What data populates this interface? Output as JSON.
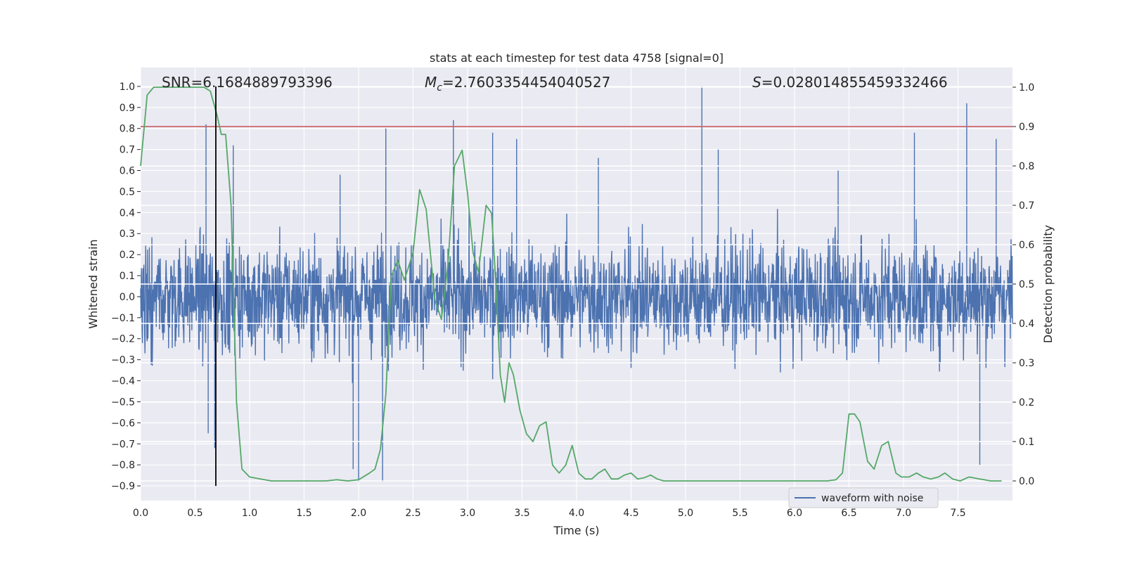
{
  "chart_data": {
    "type": "line",
    "title": "stats at each timestep for test data 4758 [signal=0]",
    "xlabel": "Time (s)",
    "ylabel": "Whitened strain",
    "y2label": "Detection probability",
    "xlim": [
      0,
      8
    ],
    "ylim": [
      -0.97,
      1.09
    ],
    "y2lim": [
      -0.05,
      1.05
    ],
    "x_ticks": [
      "0.0",
      "0.5",
      "1.0",
      "1.5",
      "2.0",
      "2.5",
      "3.0",
      "3.5",
      "4.0",
      "4.5",
      "5.0",
      "5.5",
      "6.0",
      "6.5",
      "7.0",
      "7.5"
    ],
    "y_ticks": [
      "1.0",
      "0.9",
      "0.8",
      "0.7",
      "0.6",
      "0.5",
      "0.4",
      "0.3",
      "0.2",
      "0.1",
      "0.0",
      "−0.1",
      "−0.2",
      "−0.3",
      "−0.4",
      "−0.5",
      "−0.6",
      "−0.7",
      "−0.8",
      "−0.9"
    ],
    "y2_ticks": [
      "1.0",
      "0.9",
      "0.8",
      "0.7",
      "0.6",
      "0.5",
      "0.4",
      "0.3",
      "0.2",
      "0.1",
      "0.0"
    ],
    "grid": true,
    "legend_position": "bottom-right",
    "annotations": {
      "snr": "SNR=6.1684889793396",
      "mc_symbol": "M",
      "mc_sub": "c",
      "mc_value": "=2.7603354454040527",
      "s_symbol": "S",
      "s_value": "=0.028014855459332466"
    },
    "threshold_y2": 0.9,
    "marker_x": 0.69,
    "series": [
      {
        "name": "waveform with noise",
        "color": "#4c72b0",
        "axis": "left",
        "kind": "noise",
        "amplitude": 0.22,
        "spikes": [
          [
            0.6,
            0.82
          ],
          [
            0.62,
            -0.65
          ],
          [
            0.68,
            -0.72
          ],
          [
            0.85,
            0.72
          ],
          [
            1.83,
            0.58
          ],
          [
            1.95,
            -0.82
          ],
          [
            2.0,
            -0.88
          ],
          [
            2.22,
            -0.88
          ],
          [
            2.25,
            0.8
          ],
          [
            2.87,
            0.84
          ],
          [
            3.23,
            0.78
          ],
          [
            3.45,
            0.75
          ],
          [
            4.2,
            0.66
          ],
          [
            5.15,
            1.0
          ],
          [
            5.3,
            0.7
          ],
          [
            6.4,
            0.6
          ],
          [
            7.1,
            0.78
          ],
          [
            7.58,
            0.92
          ],
          [
            7.7,
            -0.8
          ],
          [
            7.85,
            0.75
          ]
        ]
      },
      {
        "name": "detection probability",
        "color": "#55a868",
        "axis": "right",
        "x": [
          0.0,
          0.06,
          0.12,
          0.2,
          0.3,
          0.4,
          0.5,
          0.58,
          0.64,
          0.7,
          0.74,
          0.78,
          0.83,
          0.88,
          0.93,
          1.0,
          1.1,
          1.2,
          1.3,
          1.4,
          1.5,
          1.6,
          1.7,
          1.8,
          1.9,
          2.0,
          2.1,
          2.15,
          2.2,
          2.25,
          2.3,
          2.36,
          2.42,
          2.5,
          2.56,
          2.62,
          2.7,
          2.76,
          2.82,
          2.88,
          2.95,
          3.0,
          3.05,
          3.1,
          3.17,
          3.22,
          3.26,
          3.3,
          3.34,
          3.38,
          3.42,
          3.48,
          3.54,
          3.6,
          3.66,
          3.72,
          3.78,
          3.84,
          3.9,
          3.96,
          4.02,
          4.08,
          4.14,
          4.2,
          4.26,
          4.32,
          4.38,
          4.44,
          4.5,
          4.56,
          4.62,
          4.68,
          4.74,
          4.8,
          4.9,
          5.0,
          5.2,
          5.4,
          5.6,
          5.8,
          6.0,
          6.2,
          6.3,
          6.38,
          6.44,
          6.5,
          6.55,
          6.6,
          6.67,
          6.73,
          6.8,
          6.86,
          6.93,
          6.98,
          7.05,
          7.12,
          7.18,
          7.25,
          7.32,
          7.38,
          7.45,
          7.52,
          7.6,
          7.7,
          7.8,
          7.9
        ],
        "y": [
          0.8,
          0.98,
          1.0,
          1.0,
          1.0,
          1.0,
          1.0,
          1.0,
          0.99,
          0.93,
          0.88,
          0.88,
          0.7,
          0.2,
          0.03,
          0.01,
          0.005,
          0.0,
          0.0,
          0.0,
          0.0,
          0.0,
          0.0,
          0.003,
          0.0,
          0.003,
          0.02,
          0.03,
          0.08,
          0.22,
          0.52,
          0.56,
          0.51,
          0.58,
          0.74,
          0.69,
          0.46,
          0.41,
          0.55,
          0.8,
          0.84,
          0.73,
          0.58,
          0.53,
          0.7,
          0.68,
          0.5,
          0.27,
          0.2,
          0.3,
          0.27,
          0.18,
          0.12,
          0.1,
          0.14,
          0.15,
          0.04,
          0.02,
          0.04,
          0.09,
          0.02,
          0.005,
          0.005,
          0.02,
          0.03,
          0.005,
          0.005,
          0.015,
          0.02,
          0.005,
          0.008,
          0.015,
          0.005,
          0.0,
          0.0,
          0.0,
          0.0,
          0.0,
          0.0,
          0.0,
          0.0,
          0.0,
          0.0,
          0.003,
          0.02,
          0.17,
          0.17,
          0.15,
          0.05,
          0.03,
          0.09,
          0.1,
          0.02,
          0.01,
          0.01,
          0.02,
          0.01,
          0.005,
          0.01,
          0.02,
          0.005,
          0.0,
          0.01,
          0.005,
          0.0,
          0.0
        ]
      }
    ]
  }
}
